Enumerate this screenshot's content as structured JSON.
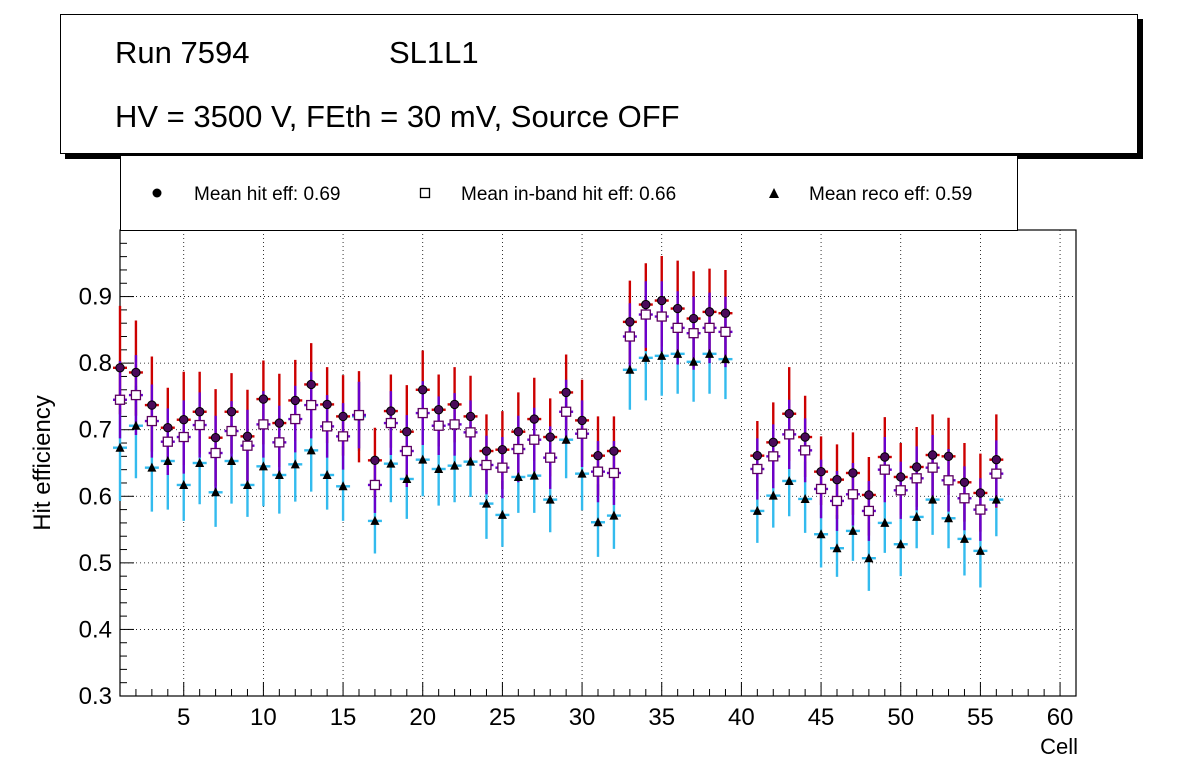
{
  "title": {
    "run": "Run 7594",
    "layer": "SL1L1",
    "conditions": "HV = 3500 V, FEth = 30 mV, Source OFF"
  },
  "legend": {
    "hit": "Mean hit  eff: 0.69",
    "inband": "Mean in-band hit eff: 0.66",
    "reco": "Mean reco eff: 0.59"
  },
  "colors": {
    "hit_error": "#cc0000",
    "hit_marker_fill": "#4a0a5a",
    "inband_error": "#6a00cc",
    "inband_marker_border": "#5a0060",
    "reco_error": "#33bbee",
    "marker_black": "#000000"
  },
  "chart_data": {
    "type": "scatter",
    "xlabel": "Cell",
    "ylabel": "Hit efficiency",
    "xlim": [
      1,
      61
    ],
    "ylim": [
      0.3,
      1.0
    ],
    "grid": true,
    "xticks": [
      5,
      10,
      15,
      20,
      25,
      30,
      35,
      40,
      45,
      50,
      55,
      60
    ],
    "yticks": [
      0.3,
      0.4,
      0.5,
      0.6,
      0.7,
      0.8,
      0.9
    ],
    "x": [
      1,
      2,
      3,
      4,
      5,
      6,
      7,
      8,
      9,
      10,
      11,
      12,
      13,
      14,
      15,
      16,
      17,
      18,
      19,
      20,
      21,
      22,
      23,
      24,
      25,
      26,
      27,
      28,
      29,
      30,
      31,
      32,
      33,
      34,
      35,
      36,
      37,
      38,
      39,
      41,
      42,
      43,
      44,
      45,
      46,
      47,
      48,
      49,
      50,
      51,
      52,
      53,
      54,
      55,
      56
    ],
    "series": [
      {
        "name": "hit",
        "values": [
          0.793,
          0.786,
          0.737,
          0.703,
          0.715,
          0.727,
          0.688,
          0.727,
          0.69,
          0.746,
          0.71,
          0.744,
          0.768,
          0.738,
          0.72,
          0.722,
          0.654,
          0.728,
          0.697,
          0.76,
          0.73,
          0.738,
          0.72,
          0.668,
          0.67,
          0.697,
          0.716,
          0.689,
          0.756,
          0.714,
          0.661,
          0.668,
          0.862,
          0.888,
          0.894,
          0.882,
          0.867,
          0.877,
          0.875,
          0.661,
          0.681,
          0.724,
          0.689,
          0.637,
          0.625,
          0.635,
          0.602,
          0.659,
          0.629,
          0.644,
          0.662,
          0.66,
          0.621,
          0.605,
          0.655
        ],
        "err_up": [
          0.093,
          0.078,
          0.073,
          0.06,
          0.072,
          0.06,
          0.073,
          0.058,
          0.07,
          0.058,
          0.074,
          0.061,
          0.062,
          0.056,
          0.062,
          0.066,
          0.049,
          0.055,
          0.07,
          0.059,
          0.053,
          0.056,
          0.061,
          0.055,
          0.058,
          0.059,
          0.062,
          0.058,
          0.057,
          0.061,
          0.059,
          0.052,
          0.062,
          0.062,
          0.067,
          0.072,
          0.071,
          0.065,
          0.065,
          0.052,
          0.06,
          0.07,
          0.062,
          0.053,
          0.053,
          0.061,
          0.057,
          0.06,
          0.051,
          0.06,
          0.061,
          0.058,
          0.059,
          0.059,
          0.068
        ],
        "err_down": [
          0.07,
          0.065,
          0.07,
          0.06,
          0.068,
          0.063,
          0.073,
          0.063,
          0.066,
          0.068,
          0.066,
          0.061,
          0.066,
          0.058,
          0.059,
          0.071,
          0.056,
          0.055,
          0.066,
          0.06,
          0.055,
          0.057,
          0.065,
          0.062,
          0.059,
          0.06,
          0.063,
          0.059,
          0.056,
          0.06,
          0.06,
          0.058,
          0.062,
          0.07,
          0.069,
          0.075,
          0.073,
          0.07,
          0.07,
          0.054,
          0.06,
          0.071,
          0.06,
          0.05,
          0.059,
          0.063,
          0.061,
          0.058,
          0.057,
          0.06,
          0.062,
          0.058,
          0.059,
          0.058,
          0.072
        ]
      },
      {
        "name": "inband",
        "values": [
          0.745,
          0.752,
          0.713,
          0.682,
          0.689,
          0.707,
          0.665,
          0.698,
          0.676,
          0.708,
          0.681,
          0.716,
          0.737,
          0.705,
          0.69,
          0.722,
          0.617,
          0.71,
          0.668,
          0.725,
          0.706,
          0.708,
          0.696,
          0.647,
          0.643,
          0.671,
          0.685,
          0.658,
          0.727,
          0.694,
          0.637,
          0.635,
          0.84,
          0.873,
          0.87,
          0.853,
          0.845,
          0.853,
          0.847,
          0.641,
          0.66,
          0.693,
          0.669,
          0.611,
          0.593,
          0.603,
          0.578,
          0.64,
          0.609,
          0.627,
          0.643,
          0.624,
          0.597,
          0.58,
          0.634
        ],
        "err_up": [
          0.058,
          0.06,
          0.055,
          0.05,
          0.055,
          0.049,
          0.056,
          0.045,
          0.054,
          0.05,
          0.055,
          0.05,
          0.05,
          0.047,
          0.05,
          0.05,
          0.042,
          0.048,
          0.054,
          0.048,
          0.044,
          0.047,
          0.048,
          0.044,
          0.046,
          0.05,
          0.048,
          0.047,
          0.048,
          0.05,
          0.046,
          0.048,
          0.05,
          0.05,
          0.053,
          0.055,
          0.055,
          0.053,
          0.053,
          0.046,
          0.048,
          0.052,
          0.048,
          0.044,
          0.045,
          0.047,
          0.045,
          0.049,
          0.043,
          0.048,
          0.049,
          0.047,
          0.048,
          0.047,
          0.05
        ],
        "err_down": [
          0.058,
          0.06,
          0.055,
          0.05,
          0.055,
          0.049,
          0.056,
          0.045,
          0.054,
          0.05,
          0.055,
          0.05,
          0.05,
          0.047,
          0.05,
          0.05,
          0.042,
          0.048,
          0.054,
          0.048,
          0.044,
          0.047,
          0.048,
          0.044,
          0.046,
          0.05,
          0.048,
          0.047,
          0.048,
          0.05,
          0.046,
          0.048,
          0.05,
          0.05,
          0.053,
          0.055,
          0.055,
          0.053,
          0.053,
          0.046,
          0.048,
          0.052,
          0.048,
          0.044,
          0.045,
          0.047,
          0.045,
          0.049,
          0.043,
          0.048,
          0.049,
          0.047,
          0.048,
          0.047,
          0.05
        ]
      },
      {
        "name": "reco",
        "values": [
          0.673,
          0.706,
          0.643,
          0.653,
          0.617,
          0.65,
          0.606,
          0.653,
          0.617,
          0.645,
          0.632,
          0.648,
          0.669,
          0.632,
          0.615,
          0.72,
          0.563,
          0.649,
          0.626,
          0.655,
          0.641,
          0.646,
          0.652,
          0.589,
          0.572,
          0.629,
          0.631,
          0.595,
          0.685,
          0.634,
          0.561,
          0.571,
          0.79,
          0.808,
          0.811,
          0.814,
          0.802,
          0.814,
          0.806,
          0.578,
          0.601,
          0.623,
          0.596,
          0.543,
          0.522,
          0.548,
          0.507,
          0.56,
          0.528,
          0.569,
          0.595,
          0.567,
          0.536,
          0.518,
          0.595
        ],
        "err_up": [
          0.059,
          0.06,
          0.062,
          0.057,
          0.056,
          0.058,
          0.055,
          0.056,
          0.058,
          0.055,
          0.06,
          0.057,
          0.06,
          0.062,
          0.06,
          0.052,
          0.052,
          0.056,
          0.058,
          0.058,
          0.056,
          0.056,
          0.055,
          0.052,
          0.051,
          0.053,
          0.058,
          0.054,
          0.056,
          0.054,
          0.057,
          0.052,
          0.062,
          0.064,
          0.064,
          0.062,
          0.06,
          0.064,
          0.064,
          0.056,
          0.054,
          0.06,
          0.056,
          0.052,
          0.05,
          0.052,
          0.054,
          0.052,
          0.05,
          0.052,
          0.055,
          0.054,
          0.054,
          0.052,
          0.055
        ],
        "err_down": [
          0.08,
          0.079,
          0.066,
          0.073,
          0.054,
          0.062,
          0.052,
          0.064,
          0.048,
          0.06,
          0.058,
          0.056,
          0.062,
          0.052,
          0.052,
          0.052,
          0.049,
          0.058,
          0.06,
          0.055,
          0.055,
          0.055,
          0.053,
          0.053,
          0.048,
          0.054,
          0.056,
          0.049,
          0.058,
          0.055,
          0.052,
          0.05,
          0.06,
          0.064,
          0.06,
          0.06,
          0.06,
          0.06,
          0.06,
          0.048,
          0.048,
          0.053,
          0.051,
          0.05,
          0.043,
          0.045,
          0.049,
          0.045,
          0.048,
          0.047,
          0.053,
          0.045,
          0.055,
          0.055,
          0.055
        ]
      }
    ]
  }
}
